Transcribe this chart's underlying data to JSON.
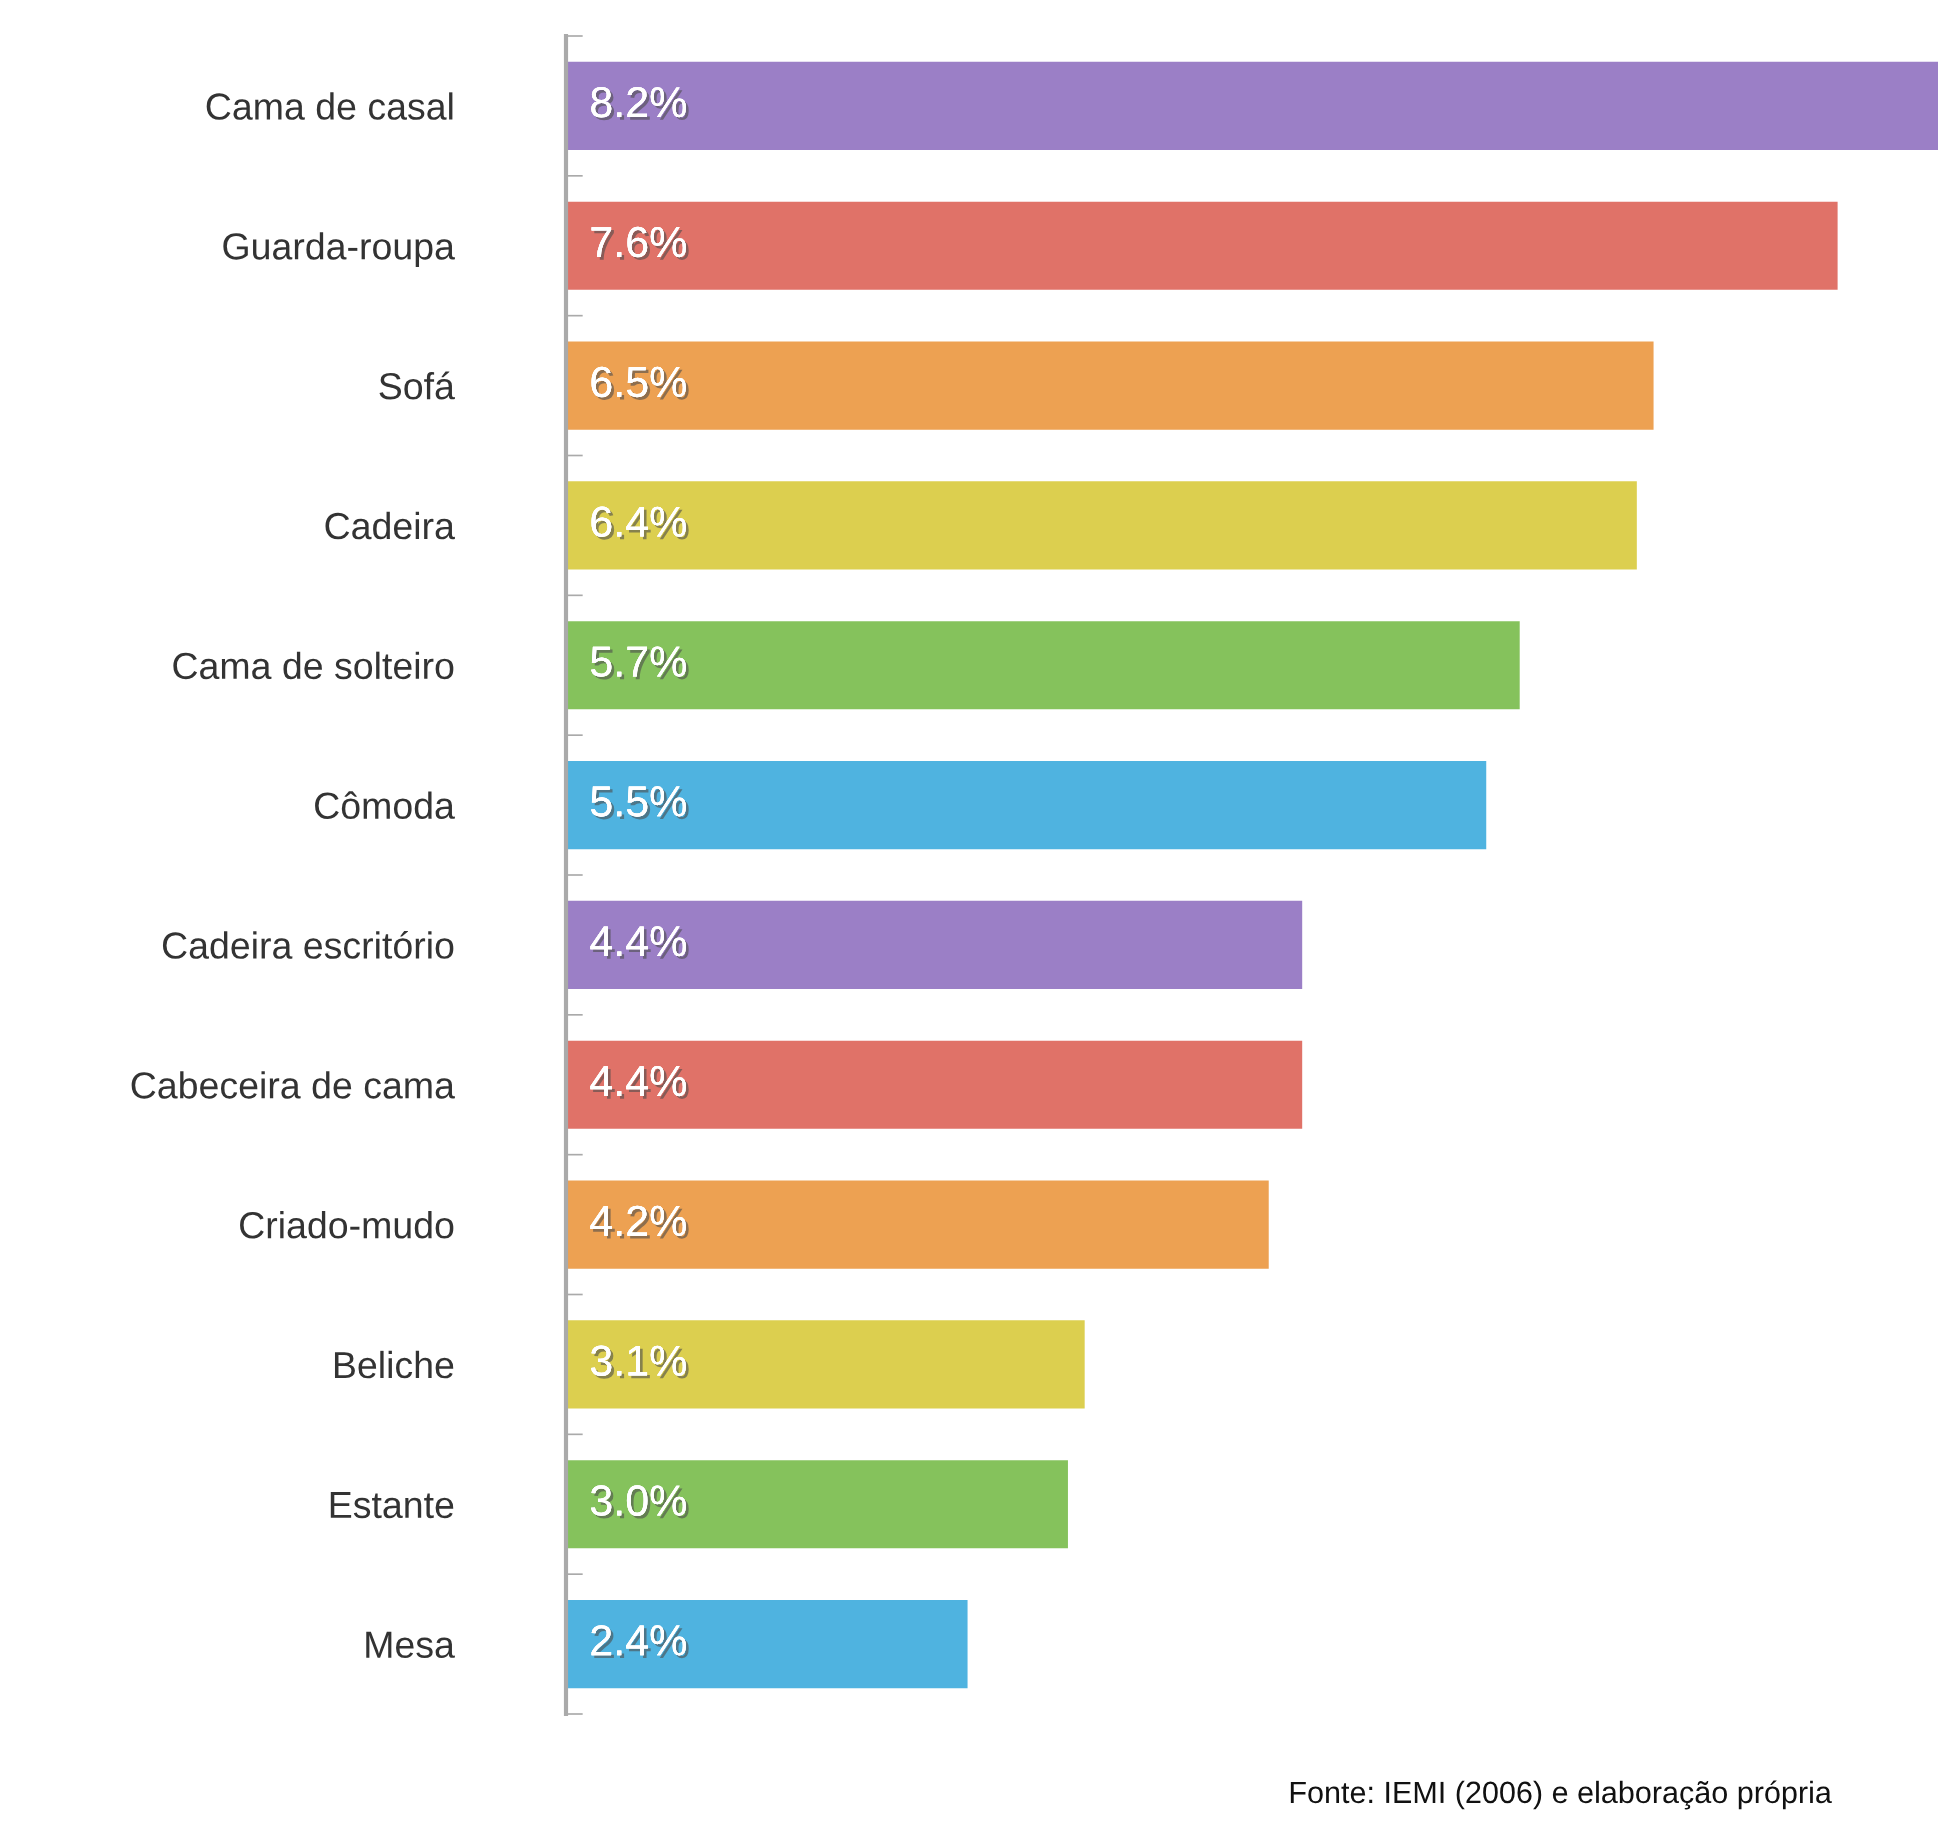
{
  "chart_data": {
    "type": "bar",
    "orientation": "horizontal",
    "categories": [
      "Cama de casal",
      "Guarda-roupa",
      "Sofá",
      "Cadeira",
      "Cama de solteiro",
      "Cômoda",
      "Cadeira escritório",
      "Cabeceira de cama",
      "Criado-mudo",
      "Beliche",
      "Estante",
      "Mesa"
    ],
    "values": [
      8.2,
      7.6,
      6.5,
      6.4,
      5.7,
      5.5,
      4.4,
      4.4,
      4.2,
      3.1,
      3.0,
      2.4
    ],
    "value_labels": [
      "8.2%",
      "7.6%",
      "6.5%",
      "6.4%",
      "5.7%",
      "5.5%",
      "4.4%",
      "4.4%",
      "4.2%",
      "3.1%",
      "3.0%",
      "2.4%"
    ],
    "colors": [
      "#9b7fc6",
      "#e07268",
      "#eda152",
      "#dccf4f",
      "#85c25c",
      "#4fb3e0",
      "#9b7fc6",
      "#e07268",
      "#eda152",
      "#dccf4f",
      "#85c25c",
      "#4fb3e0"
    ],
    "annotations": [
      "Fonte: IEMI (2006) e elaboração própria"
    ],
    "grid": false,
    "legend": false
  }
}
